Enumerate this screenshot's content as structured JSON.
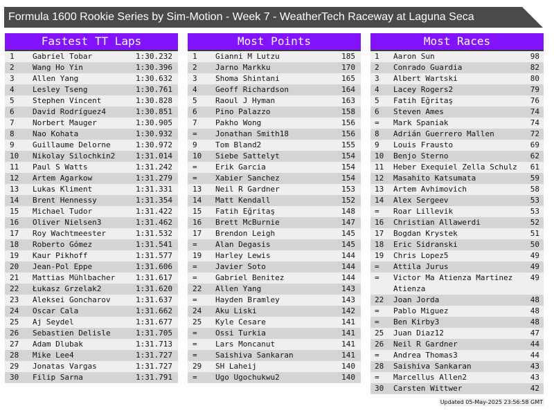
{
  "title": "Formula 1600 Rookie Series by Sim-Motion - Week 7 - WeatherTech Raceway at Laguna Seca",
  "colors": {
    "header_bg": "#8312ff",
    "title_bg": "#4a4a4a",
    "row_light": "#efefef",
    "row_dark": "#d4d4d4"
  },
  "panels": [
    {
      "heading": "Fastest TT Laps",
      "rows": [
        [
          "1",
          "Gabriel Tobar",
          "1:30.232"
        ],
        [
          "2",
          "Wang Ho Yin",
          "1:30.396"
        ],
        [
          "3",
          "Allen Yang",
          "1:30.632"
        ],
        [
          "4",
          "Lesley Tseng",
          "1:30.761"
        ],
        [
          "5",
          "Stephen Vincent",
          "1:30.828"
        ],
        [
          "6",
          "David Rodríguez4",
          "1:30.851"
        ],
        [
          "7",
          "Norbert Mauger",
          "1:30.905"
        ],
        [
          "8",
          "Nao Kohata",
          "1:30.932"
        ],
        [
          "9",
          "Guillaume Delorne",
          "1:30.972"
        ],
        [
          "10",
          "Nikolay Silochkin2",
          "1:31.014"
        ],
        [
          "11",
          "Paul S Watts",
          "1:31.242"
        ],
        [
          "12",
          "Artem Agarkow",
          "1:31.279"
        ],
        [
          "13",
          "Lukas Kliment",
          "1:31.331"
        ],
        [
          "14",
          "Brent Hennessy",
          "1:31.354"
        ],
        [
          "15",
          "Michael Tudor",
          "1:31.422"
        ],
        [
          "16",
          "Oliver Nielsen3",
          "1:31.462"
        ],
        [
          "17",
          "Roy Wachtmeester",
          "1:31.532"
        ],
        [
          "18",
          "Roberto Gómez",
          "1:31.541"
        ],
        [
          "19",
          "Kaur Pikhoff",
          "1:31.577"
        ],
        [
          "20",
          "Jean-Pol Eppe",
          "1:31.606"
        ],
        [
          "21",
          "Mattias Mühlbacher",
          "1:31.617"
        ],
        [
          "22",
          "Łukasz Grzelak2",
          "1:31.620"
        ],
        [
          "23",
          "Aleksei Goncharov",
          "1:31.637"
        ],
        [
          "24",
          "Oscar Cala",
          "1:31.662"
        ],
        [
          "25",
          "Aj Seydel",
          "1:31.677"
        ],
        [
          "26",
          "Sebastien Delisle",
          "1:31.705"
        ],
        [
          "27",
          "Adam Dlubak",
          "1:31.713"
        ],
        [
          "28",
          "Mike Lee4",
          "1:31.727"
        ],
        [
          "29",
          "Jonatas Vargas",
          "1:31.727"
        ],
        [
          "30",
          "Filip Sarna",
          "1:31.791"
        ]
      ]
    },
    {
      "heading": "Most Points",
      "rows": [
        [
          "1",
          "Gianni M Lutzu",
          "185"
        ],
        [
          "2",
          "Jarno Markku",
          "170"
        ],
        [
          "3",
          "Shoma Shintani",
          "165"
        ],
        [
          "4",
          "Geoff Richardson",
          "164"
        ],
        [
          "5",
          "Raoul J Hyman",
          "163"
        ],
        [
          "6",
          "Pino Palazzo",
          "158"
        ],
        [
          "7",
          "Pakho Wong",
          "156"
        ],
        [
          "=",
          "Jonathan Smith18",
          "156"
        ],
        [
          "9",
          "Tom Bland2",
          "155"
        ],
        [
          "10",
          "Siebe Sattelyt",
          "154"
        ],
        [
          "=",
          "Erik Garcia",
          "154"
        ],
        [
          "=",
          "Xabier Sanchez",
          "154"
        ],
        [
          "13",
          "Neil R Gardner",
          "153"
        ],
        [
          "14",
          "Matt Kendall",
          "152"
        ],
        [
          "15",
          "Fatih Eğritaş",
          "148"
        ],
        [
          "16",
          "Brett McBurnie",
          "147"
        ],
        [
          "17",
          "Brendon Leigh",
          "145"
        ],
        [
          "=",
          "Alan Degasis",
          "145"
        ],
        [
          "19",
          "Harley Lewis",
          "144"
        ],
        [
          "=",
          "Javier Soto",
          "144"
        ],
        [
          "=",
          "Gabriel Benitez",
          "144"
        ],
        [
          "22",
          "Allen Yang",
          "143"
        ],
        [
          "=",
          "Hayden Bramley",
          "143"
        ],
        [
          "24",
          "Aku Liski",
          "142"
        ],
        [
          "25",
          "Kyle Cesare",
          "141"
        ],
        [
          "=",
          "Ossi Turkia",
          "141"
        ],
        [
          "=",
          "Lars Moncanut",
          "141"
        ],
        [
          "=",
          "Saishiva Sankaran",
          "141"
        ],
        [
          "29",
          "SH Laheij",
          "140"
        ],
        [
          "=",
          "Ugo Ugochukwu2",
          "140"
        ]
      ]
    },
    {
      "heading": "Most Races",
      "rows": [
        [
          "1",
          "Aaron Sun",
          "98"
        ],
        [
          "2",
          "Conrado Guardia",
          "82"
        ],
        [
          "3",
          "Albert Wartski",
          "80"
        ],
        [
          "4",
          "Lacey Rogers2",
          "79"
        ],
        [
          "5",
          "Fatih Eğritaş",
          "76"
        ],
        [
          "6",
          "Steven Ames",
          "74"
        ],
        [
          "=",
          "Mark Spaniak",
          "74"
        ],
        [
          "8",
          "Adrián Guerrero Mallen",
          "72"
        ],
        [
          "9",
          "Louis Frausto",
          "69"
        ],
        [
          "10",
          "Benjo Sterno",
          "62"
        ],
        [
          "11",
          "Heber Exequiel Zella Schulz",
          "61"
        ],
        [
          "12",
          "Masahito Katsumata",
          "59"
        ],
        [
          "13",
          "Artem Avhimovich",
          "58"
        ],
        [
          "14",
          "Alex Sergeev",
          "53"
        ],
        [
          "=",
          "Roar Lillevik",
          "53"
        ],
        [
          "16",
          "Christian Allawerdi",
          "52"
        ],
        [
          "17",
          "Bogdan Krystek",
          "51"
        ],
        [
          "18",
          "Eric Sidranski",
          "50"
        ],
        [
          "19",
          "Chris Lopez5",
          "49"
        ],
        [
          "=",
          "Attila Jurus",
          "49"
        ],
        [
          "=",
          "Victor Ma Atienza Martinez Atienza",
          "49"
        ],
        [
          "22",
          "Joan Jorda",
          "48"
        ],
        [
          "=",
          "Pablo Miguez",
          "48"
        ],
        [
          "=",
          "Ben Kirby3",
          "48"
        ],
        [
          "25",
          "Juan Diaz12",
          "47"
        ],
        [
          "26",
          "Neil R Gardner",
          "44"
        ],
        [
          "=",
          "Andrea Thomas3",
          "44"
        ],
        [
          "28",
          "Saishiva Sankaran",
          "43"
        ],
        [
          "=",
          "Marcellus Allen2",
          "43"
        ],
        [
          "30",
          "Carsten Wittwer",
          "42"
        ]
      ]
    }
  ],
  "footer": "Updated 05-May-2025 23:56:58 GMT"
}
